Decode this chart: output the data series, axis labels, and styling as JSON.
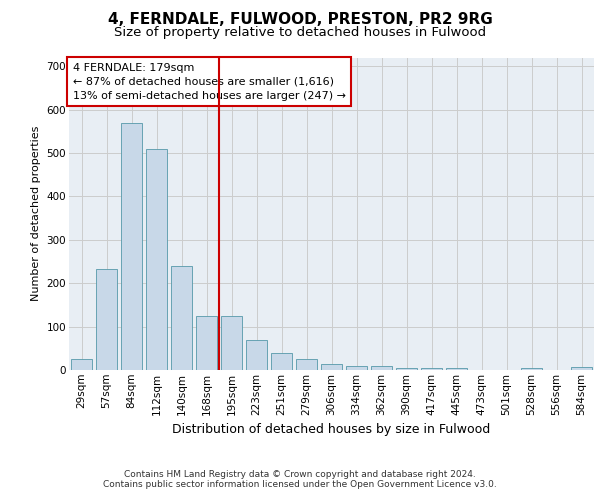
{
  "title": "4, FERNDALE, FULWOOD, PRESTON, PR2 9RG",
  "subtitle": "Size of property relative to detached houses in Fulwood",
  "xlabel": "Distribution of detached houses by size in Fulwood",
  "ylabel": "Number of detached properties",
  "categories": [
    "29sqm",
    "57sqm",
    "84sqm",
    "112sqm",
    "140sqm",
    "168sqm",
    "195sqm",
    "223sqm",
    "251sqm",
    "279sqm",
    "306sqm",
    "334sqm",
    "362sqm",
    "390sqm",
    "417sqm",
    "445sqm",
    "473sqm",
    "501sqm",
    "528sqm",
    "556sqm",
    "584sqm"
  ],
  "values": [
    26,
    232,
    570,
    510,
    240,
    125,
    125,
    70,
    40,
    25,
    14,
    10,
    10,
    5,
    5,
    5,
    0,
    0,
    5,
    0,
    6
  ],
  "bar_color": "#c8d8e8",
  "bar_edge_color": "#5599aa",
  "vline_color": "#cc0000",
  "annotation_text": "4 FERNDALE: 179sqm\n← 87% of detached houses are smaller (1,616)\n13% of semi-detached houses are larger (247) →",
  "annotation_box_color": "#ffffff",
  "annotation_box_edge_color": "#cc0000",
  "ylim": [
    0,
    720
  ],
  "yticks": [
    0,
    100,
    200,
    300,
    400,
    500,
    600,
    700
  ],
  "grid_color": "#cccccc",
  "background_color": "#e8eef4",
  "footnote_line1": "Contains HM Land Registry data © Crown copyright and database right 2024.",
  "footnote_line2": "Contains public sector information licensed under the Open Government Licence v3.0.",
  "title_fontsize": 11,
  "subtitle_fontsize": 9.5,
  "xlabel_fontsize": 9,
  "ylabel_fontsize": 8,
  "tick_fontsize": 7.5,
  "annotation_fontsize": 8,
  "footnote_fontsize": 6.5
}
